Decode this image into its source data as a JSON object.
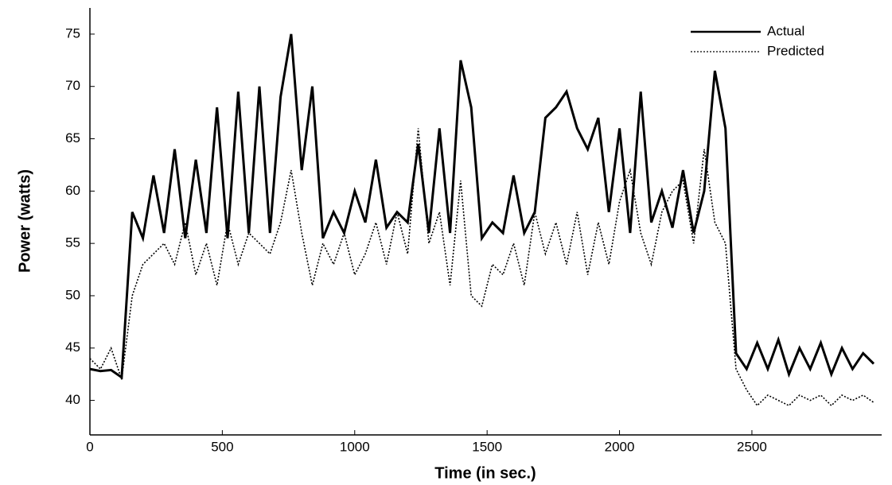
{
  "chart_data": {
    "type": "line",
    "x_label": "Time (in sec.)",
    "y_label": "Power (watts)",
    "x": [
      0,
      40,
      80,
      120,
      160,
      200,
      240,
      280,
      320,
      360,
      400,
      440,
      480,
      520,
      560,
      600,
      640,
      680,
      720,
      760,
      800,
      840,
      880,
      920,
      960,
      1000,
      1040,
      1080,
      1120,
      1160,
      1200,
      1240,
      1280,
      1320,
      1360,
      1400,
      1440,
      1480,
      1520,
      1560,
      1600,
      1640,
      1680,
      1720,
      1760,
      1800,
      1840,
      1880,
      1920,
      1960,
      2000,
      2040,
      2080,
      2120,
      2160,
      2200,
      2240,
      2280,
      2320,
      2360,
      2400,
      2440,
      2480,
      2520,
      2560,
      2600,
      2640,
      2680,
      2720,
      2760,
      2800,
      2840,
      2880,
      2920,
      2960
    ],
    "series": [
      {
        "name": "Actual",
        "color": "#000000",
        "line_style": "solid",
        "values": [
          43,
          42.8,
          42.9,
          42.2,
          58,
          55.5,
          61.5,
          56,
          64,
          55.5,
          63,
          56,
          68,
          55.5,
          69.5,
          56,
          70,
          56,
          69,
          75,
          62,
          70,
          55.5,
          58,
          56,
          60,
          57,
          63,
          56.5,
          58,
          57,
          64.5,
          56,
          66,
          56,
          72.5,
          68,
          55.5,
          57,
          56,
          61.5,
          56,
          58,
          67,
          68,
          69.5,
          66,
          64,
          67,
          58,
          66,
          56,
          69.5,
          57,
          60,
          56.5,
          62,
          56,
          60,
          71.5,
          66,
          44.5,
          43,
          45.5,
          43,
          45.8,
          42.5,
          45,
          43,
          45.5,
          42.5,
          45,
          43,
          44.5,
          43.5
        ]
      },
      {
        "name": "Predicted",
        "color": "#000000",
        "line_style": "dotted",
        "values": [
          44,
          43,
          45,
          42,
          50,
          53,
          54,
          55,
          53,
          57,
          52,
          55,
          51,
          57,
          53,
          56,
          55,
          54,
          57,
          62,
          56,
          51,
          55,
          53,
          56,
          52,
          54,
          57,
          53,
          58,
          54,
          66,
          55,
          58,
          51,
          61,
          50,
          49,
          53,
          52,
          55,
          51,
          58,
          54,
          57,
          53,
          58,
          52,
          57,
          53,
          59,
          62,
          56,
          53,
          58,
          60,
          61,
          55,
          64,
          57,
          55,
          43,
          41,
          39.5,
          40.5,
          40,
          39.5,
          40.5,
          40,
          40.5,
          39.5,
          40.5,
          40,
          40.5,
          39.8
        ]
      }
    ],
    "xlim": [
      0,
      2990
    ],
    "ylim": [
      36.7,
      77.5
    ],
    "xticks": [
      0,
      500,
      1000,
      1500,
      2000,
      2500
    ],
    "yticks": [
      40,
      45,
      50,
      55,
      60,
      65,
      70,
      75
    ],
    "legend": "upper right"
  }
}
